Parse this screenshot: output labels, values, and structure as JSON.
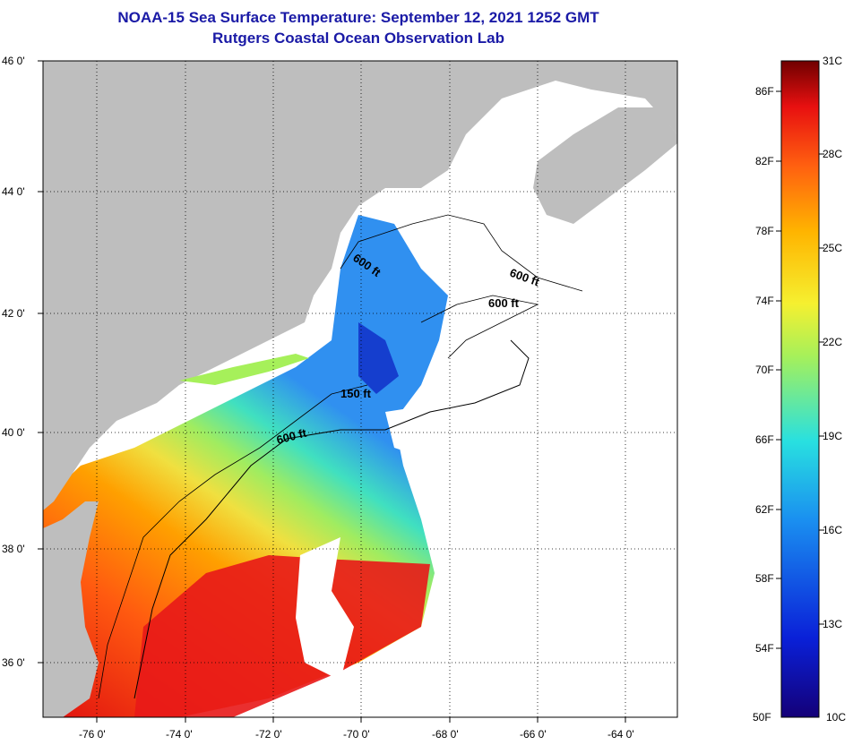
{
  "title": {
    "line1": "NOAA-15 Sea Surface Temperature:  September 12, 2021 1252 GMT",
    "line2": "Rutgers Coastal Ocean Observation Lab"
  },
  "map": {
    "lat_labels": [
      "46 0'",
      "44 0'",
      "42 0'",
      "40 0'",
      "38 0'",
      "36 0'"
    ],
    "lon_labels": [
      "-76 0'",
      "-74 0'",
      "-72 0'",
      "-70 0'",
      "-68 0'",
      "-66 0'",
      "-64 0'"
    ],
    "contour_labels": [
      "600 ft",
      "600 ft",
      "600 ft",
      "150 ft",
      "600 ft"
    ],
    "land_color": "#bebebe",
    "cloud_color": "#ffffff"
  },
  "colorbar": {
    "fahrenheit_labels": [
      "86F",
      "82F",
      "78F",
      "74F",
      "70F",
      "66F",
      "62F",
      "58F",
      "54F",
      "50F"
    ],
    "celsius_labels": [
      "31C",
      "28C",
      "25C",
      "22C",
      "19C",
      "16C",
      "13C",
      "10C"
    ],
    "stops": [
      "#1a0096",
      "#0a2be0",
      "#1aa0f0",
      "#30e0d0",
      "#a6f05a",
      "#f5f030",
      "#ffb400",
      "#ff6a10",
      "#f01010",
      "#7a0000"
    ]
  }
}
